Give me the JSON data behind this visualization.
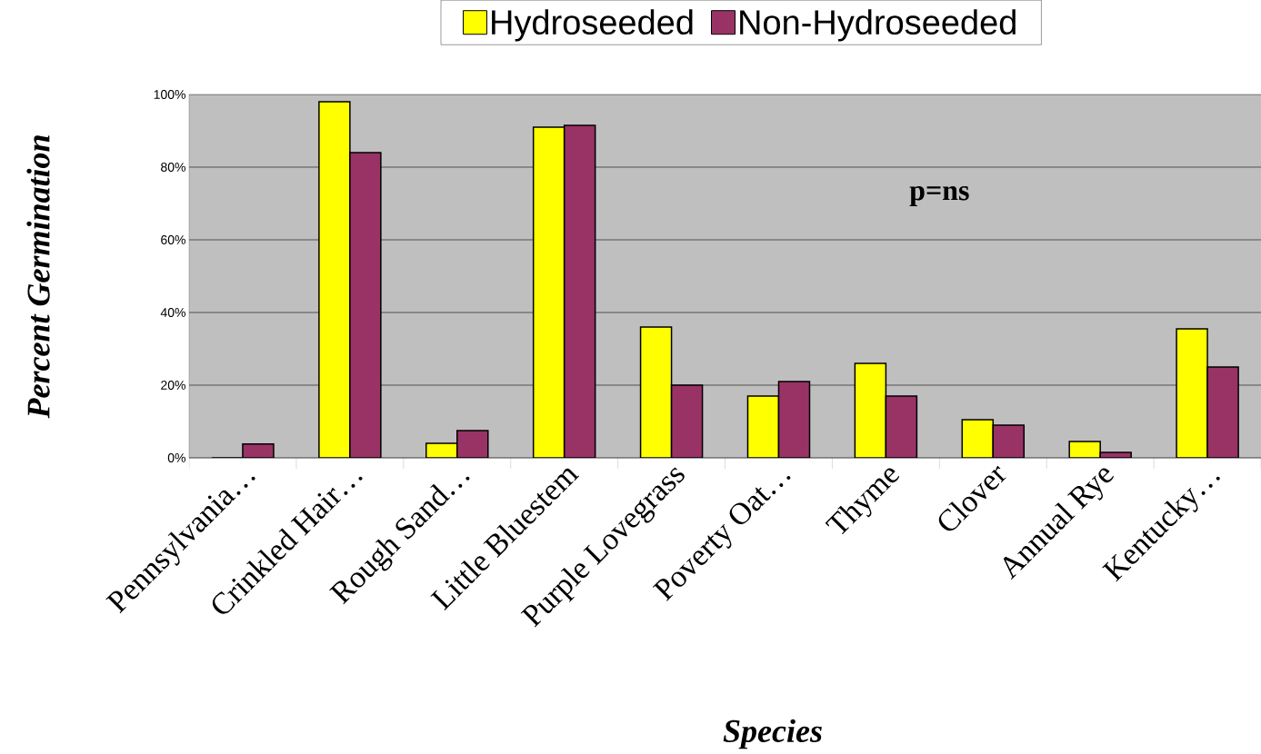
{
  "chart_data": {
    "type": "bar",
    "xlabel": "Species",
    "ylabel": "Percent Germination",
    "categories": [
      "Pennsylvania…",
      "Crinkled Hair…",
      "Rough Sand…",
      "Little Bluestem",
      "Purple Lovegrass",
      "Poverty Oat…",
      "Thyme",
      "Clover",
      "Annual Rye",
      "Kentucky…"
    ],
    "series": [
      {
        "name": "Hydroseeded",
        "color": "#ffff00",
        "values": [
          0,
          98,
          4,
          91,
          36,
          17,
          26,
          10.5,
          4.5,
          35.5
        ]
      },
      {
        "name": "Non-Hydroseeded",
        "color": "#993366",
        "values": [
          3.8,
          84,
          7.5,
          91.5,
          20,
          21,
          17,
          9,
          1.5,
          25
        ]
      }
    ],
    "ylim": [
      0,
      100
    ],
    "yticks": [
      {
        "value": 0,
        "label": "0%"
      },
      {
        "value": 20,
        "label": "20%"
      },
      {
        "value": 40,
        "label": "40%"
      },
      {
        "value": 60,
        "label": "60%"
      },
      {
        "value": 80,
        "label": "80%"
      },
      {
        "value": 100,
        "label": "100%"
      }
    ],
    "grid": "y",
    "legend": "top",
    "annotations": [
      "p=ns"
    ]
  }
}
